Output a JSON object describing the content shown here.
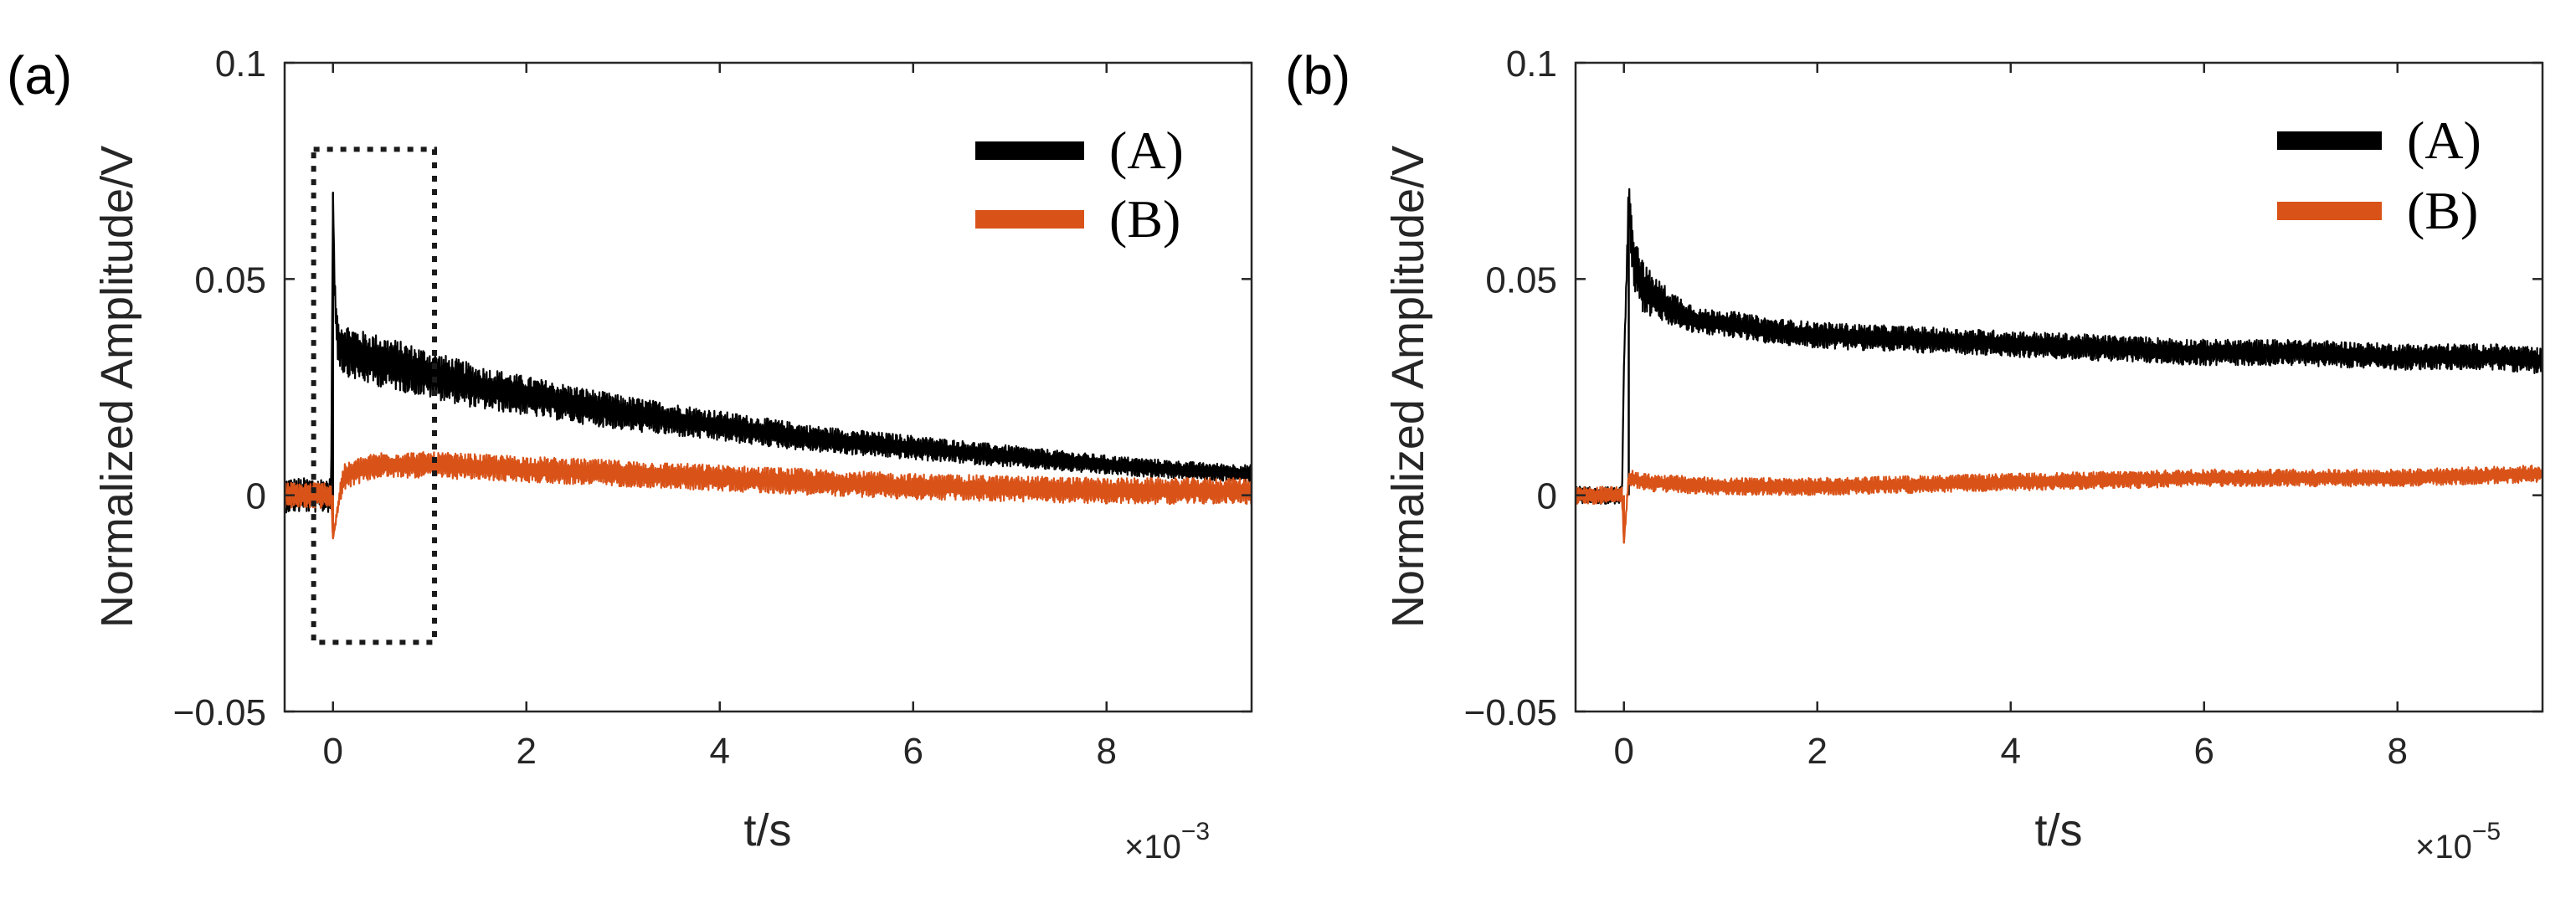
{
  "colors": {
    "A": "#000000",
    "B": "#d95319",
    "axis": "#262626"
  },
  "chart_data": [
    {
      "type": "line",
      "panel_label": "(a)",
      "xlabel": "t/s",
      "ylabel": "Normalized Amplitude/V",
      "x_multiplier": "×10",
      "x_exponent": "−3",
      "xlim": [
        -0.5,
        9.5
      ],
      "ylim": [
        -0.05,
        0.1
      ],
      "xticks": [
        0,
        2,
        4,
        6,
        8
      ],
      "xtick_labels": [
        "0",
        "2",
        "4",
        "6",
        "8"
      ],
      "yticks": [
        -0.05,
        0,
        0.05,
        0.1
      ],
      "ytick_labels": [
        "−0.05",
        "0",
        "0.05",
        "0.1"
      ],
      "legend_position": "top-right",
      "annotation": "dotted zoom box from t=-0.2 to t=1.05, amplitude -0.034 to 0.08",
      "zoom_box": {
        "x0": -0.2,
        "x1": 1.05,
        "y0": -0.034,
        "y1": 0.08
      },
      "series": [
        {
          "name": "(A)",
          "color_key": "A",
          "x": [
            -0.5,
            -0.02,
            0,
            0.02,
            0.05,
            0.1,
            0.3,
            0.5,
            1,
            1.5,
            2,
            3,
            4,
            5,
            6,
            7,
            8,
            9,
            9.5
          ],
          "y": [
            0,
            0,
            0.07,
            0.045,
            0.036,
            0.034,
            0.032,
            0.031,
            0.028,
            0.025,
            0.023,
            0.019,
            0.016,
            0.013,
            0.011,
            0.009,
            0.007,
            0.0055,
            0.005
          ],
          "noise_amplitude": [
            0.004,
            0.004,
            0,
            0.004,
            0.005,
            0.006,
            0.006,
            0.006,
            0.0055,
            0.005,
            0.0045,
            0.004,
            0.0035,
            0.003,
            0.0028,
            0.0025,
            0.0022,
            0.002,
            0.002
          ]
        },
        {
          "name": "(B)",
          "color_key": "B",
          "x": [
            -0.5,
            -0.02,
            0,
            0.1,
            0.3,
            0.5,
            1,
            2,
            4,
            6,
            8,
            9.5
          ],
          "y": [
            0,
            0,
            -0.01,
            0.004,
            0.006,
            0.007,
            0.007,
            0.006,
            0.004,
            0.002,
            0.001,
            0.001
          ],
          "noise_amplitude": [
            0.003,
            0.003,
            0,
            0.003,
            0.003,
            0.003,
            0.003,
            0.003,
            0.003,
            0.003,
            0.003,
            0.003
          ]
        }
      ]
    },
    {
      "type": "line",
      "panel_label": "(b)",
      "xlabel": "t/s",
      "ylabel": "Normalized Amplitude/V",
      "x_multiplier": "×10",
      "x_exponent": "−5",
      "xlim": [
        -0.5,
        9.5
      ],
      "ylim": [
        -0.05,
        0.1
      ],
      "xticks": [
        0,
        2,
        4,
        6,
        8
      ],
      "xtick_labels": [
        "0",
        "2",
        "4",
        "6",
        "8"
      ],
      "yticks": [
        -0.05,
        0,
        0.05,
        0.1
      ],
      "ytick_labels": [
        "−0.05",
        "0",
        "0.05",
        "0.1"
      ],
      "legend_position": "top-right",
      "series": [
        {
          "name": "(A)",
          "color_key": "A",
          "x": [
            -0.5,
            -0.02,
            0,
            0.05,
            0.1,
            0.2,
            0.3,
            0.5,
            0.8,
            1,
            1.5,
            2,
            3,
            4,
            5,
            6,
            7,
            8,
            9,
            9.5
          ],
          "y": [
            0,
            0,
            0.03,
            0.068,
            0.055,
            0.048,
            0.046,
            0.043,
            0.04,
            0.04,
            0.038,
            0.037,
            0.036,
            0.035,
            0.034,
            0.033,
            0.033,
            0.032,
            0.032,
            0.031
          ],
          "noise_amplitude": [
            0.002,
            0.002,
            0,
            0.006,
            0.007,
            0.006,
            0.005,
            0.004,
            0.003,
            0.003,
            0.003,
            0.003,
            0.003,
            0.003,
            0.003,
            0.003,
            0.003,
            0.003,
            0.003,
            0.003
          ]
        },
        {
          "name": "(B)",
          "color_key": "B",
          "x": [
            -0.5,
            -0.02,
            0,
            0.05,
            0.2,
            1,
            2,
            4,
            6,
            8,
            9.5
          ],
          "y": [
            0,
            0,
            -0.011,
            0.004,
            0.003,
            0.002,
            0.002,
            0.003,
            0.004,
            0.004,
            0.005
          ],
          "noise_amplitude": [
            0.002,
            0.002,
            0,
            0.002,
            0.002,
            0.002,
            0.002,
            0.002,
            0.002,
            0.002,
            0.002
          ]
        }
      ]
    }
  ]
}
